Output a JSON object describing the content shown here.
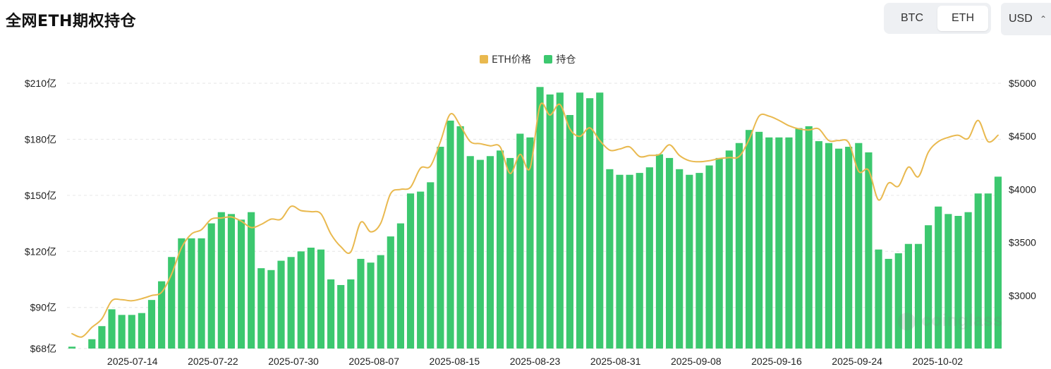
{
  "header": {
    "title": "全网ETH期权持仓"
  },
  "asset_toggle": {
    "options": [
      "BTC",
      "ETH"
    ],
    "selected": "ETH"
  },
  "currency_select": {
    "value": "USD"
  },
  "colors": {
    "price_line": "#e9b94f",
    "bars": "#3cc86f",
    "grid": "#e6e6e6"
  },
  "watermark": "coinglass",
  "chart_data": {
    "type": "bar",
    "legend": [
      {
        "label": "ETH价格",
        "color": "#e9b94f"
      },
      {
        "label": "持仓",
        "color": "#3cc86f"
      }
    ],
    "legend_position": "top-center",
    "grid": "horizontal-dashed",
    "x_tick_labels": [
      "2025-07-14",
      "2025-07-22",
      "2025-07-30",
      "2025-08-07",
      "2025-08-15",
      "2025-08-23",
      "2025-08-31",
      "2025-09-08",
      "2025-09-16",
      "2025-09-24",
      "2025-10-02"
    ],
    "x_start": "2025-07-08",
    "x_end": "2025-10-08",
    "y_left": {
      "ticks": [
        68,
        90,
        120,
        150,
        180,
        210
      ],
      "tick_labels": [
        "$68亿",
        "$90亿",
        "$120亿",
        "$150亿",
        "$180亿",
        "$210亿"
      ],
      "range": [
        68,
        210
      ],
      "unit": "亿"
    },
    "y_right": {
      "ticks": [
        3000,
        3500,
        4000,
        4500,
        5000
      ],
      "tick_labels": [
        "$3000",
        "$3500",
        "$4000",
        "$4500",
        "$5000"
      ],
      "range": [
        2500,
        5000
      ]
    },
    "series": [
      {
        "name": "持仓",
        "type": "bar",
        "axis": "left",
        "values": [
          69,
          68,
          73,
          80,
          89,
          86,
          86,
          87,
          94,
          104,
          117,
          127,
          127,
          127,
          135,
          141,
          140,
          137,
          141,
          111,
          110,
          115,
          117,
          120,
          122,
          121,
          105,
          102,
          105,
          116,
          114,
          118,
          128,
          135,
          151,
          152,
          157,
          176,
          190,
          187,
          171,
          169,
          171,
          174,
          170,
          183,
          181,
          208,
          204,
          205,
          193,
          205,
          202,
          205,
          164,
          161,
          161,
          162,
          165,
          172,
          170,
          164,
          161,
          162,
          166,
          170,
          174,
          178,
          185,
          184,
          181,
          181,
          181,
          186,
          187,
          179,
          178,
          175,
          176,
          178,
          173,
          121,
          116,
          119,
          124,
          124,
          134,
          144,
          140,
          139,
          141,
          151,
          151,
          160
        ]
      },
      {
        "name": "ETH价格",
        "type": "line",
        "axis": "right",
        "values": [
          2640,
          2610,
          2700,
          2780,
          2950,
          2960,
          2950,
          2970,
          3000,
          3030,
          3200,
          3450,
          3580,
          3620,
          3720,
          3730,
          3740,
          3700,
          3640,
          3670,
          3720,
          3720,
          3840,
          3800,
          3790,
          3770,
          3580,
          3460,
          3410,
          3690,
          3600,
          3680,
          3960,
          4000,
          4020,
          4200,
          4220,
          4450,
          4710,
          4600,
          4450,
          4430,
          4410,
          4400,
          4150,
          4330,
          4200,
          4790,
          4700,
          4800,
          4570,
          4500,
          4580,
          4460,
          4370,
          4380,
          4400,
          4310,
          4320,
          4330,
          4420,
          4320,
          4270,
          4260,
          4270,
          4290,
          4300,
          4310,
          4470,
          4690,
          4690,
          4650,
          4600,
          4570,
          4560,
          4570,
          4460,
          4460,
          4440,
          4170,
          4180,
          3900,
          4060,
          4030,
          4210,
          4120,
          4350,
          4450,
          4490,
          4510,
          4480,
          4650,
          4450,
          4510
        ]
      }
    ]
  }
}
